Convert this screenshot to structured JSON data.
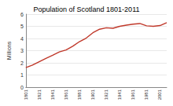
{
  "chart_data": {
    "type": "line",
    "title": "Population of Scotland 1801-2011",
    "ylabel": "Millions",
    "categories": [
      "1801",
      null,
      "1821",
      null,
      "1841",
      null,
      "1861",
      null,
      "1881",
      null,
      "1901",
      null,
      "1921",
      null,
      "1941",
      null,
      "1961",
      null,
      "1981",
      null,
      "2001",
      null
    ],
    "values": [
      1.61,
      1.81,
      2.09,
      2.36,
      2.62,
      2.89,
      3.06,
      3.36,
      3.74,
      4.03,
      4.47,
      4.76,
      4.88,
      4.84,
      5.0,
      5.1,
      5.18,
      5.23,
      5.04,
      5.0,
      5.06,
      5.3
    ],
    "color": "#c0392b",
    "ylim": [
      0,
      6
    ],
    "yticks": [
      0,
      1,
      2,
      3,
      4,
      5,
      6
    ],
    "grid": true
  }
}
